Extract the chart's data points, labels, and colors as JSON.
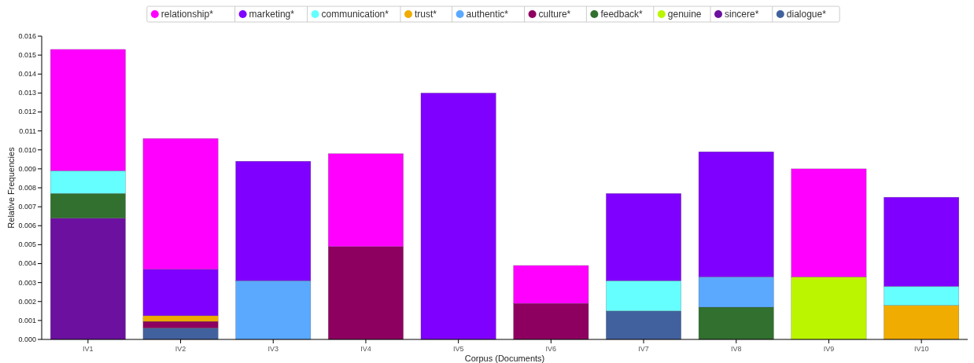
{
  "chart_data": {
    "type": "bar",
    "stacked": true,
    "xlabel": "Corpus (Documents)",
    "ylabel": "Relative Frequencies",
    "legend": "top",
    "grid": false,
    "categories": [
      "IV1",
      "IV2",
      "IV3",
      "IV4",
      "IV5",
      "IV6",
      "IV7",
      "IV8",
      "IV9",
      "IV10"
    ],
    "ylim": [
      0,
      0.016
    ],
    "yticks": [
      {
        "value": 0,
        "label": "0.000"
      },
      {
        "value": 0.001,
        "label": "0.001"
      },
      {
        "value": 0.002,
        "label": "0.002"
      },
      {
        "value": 0.003,
        "label": "0.003"
      },
      {
        "value": 0.004,
        "label": "0.004"
      },
      {
        "value": 0.005,
        "label": "0.005"
      },
      {
        "value": 0.006,
        "label": "0.006"
      },
      {
        "value": 0.007,
        "label": "0.007"
      },
      {
        "value": 0.008,
        "label": "0.008"
      },
      {
        "value": 0.009,
        "label": "0.009"
      },
      {
        "value": 0.01,
        "label": "0.010"
      },
      {
        "value": 0.011,
        "label": "0.011"
      },
      {
        "value": 0.012,
        "label": "0.012"
      },
      {
        "value": 0.013,
        "label": "0.013"
      },
      {
        "value": 0.014,
        "label": "0.014"
      },
      {
        "value": 0.015,
        "label": "0.015"
      },
      {
        "value": 0.016,
        "label": "0.016"
      }
    ],
    "series": [
      {
        "name": "dialogue*",
        "color": "#41619e",
        "values": [
          0,
          0.0006,
          0,
          0,
          0,
          0,
          0.0015,
          0,
          0,
          0
        ]
      },
      {
        "name": "sincere*",
        "color": "#6c10a0",
        "values": [
          0.0064,
          0,
          0,
          0,
          0,
          0,
          0,
          0,
          0,
          0
        ]
      },
      {
        "name": "genuine",
        "color": "#bbf500",
        "values": [
          0,
          0,
          0,
          0,
          0,
          0,
          0,
          0,
          0.0033,
          0
        ]
      },
      {
        "name": "feedback*",
        "color": "#31702e",
        "values": [
          0.0013,
          0,
          0,
          0,
          0,
          0,
          0,
          0.0017,
          0,
          0
        ]
      },
      {
        "name": "culture*",
        "color": "#8e0060",
        "values": [
          0,
          0.00035,
          0,
          0.0049,
          0,
          0.0019,
          0,
          0,
          0,
          0
        ]
      },
      {
        "name": "authentic*",
        "color": "#5aa9ff",
        "values": [
          0,
          0,
          0.0031,
          0,
          0,
          0,
          0,
          0.0016,
          0,
          0
        ]
      },
      {
        "name": "trust*",
        "color": "#f0ac00",
        "values": [
          0,
          0.0003,
          0,
          0,
          0,
          0,
          0,
          0,
          0,
          0.0018
        ]
      },
      {
        "name": "communication*",
        "color": "#66ffff",
        "values": [
          0.0012,
          0,
          0,
          0,
          0,
          0,
          0.0016,
          0,
          0,
          0.001
        ]
      },
      {
        "name": "marketing*",
        "color": "#8000ff",
        "values": [
          0,
          0.00245,
          0.0063,
          0,
          0.013,
          0,
          0.0046,
          0.0066,
          0,
          0.0047
        ]
      },
      {
        "name": "relationship*",
        "color": "#ff00ff",
        "values": [
          0.0064,
          0.0069,
          0,
          0.0049,
          0,
          0.002,
          0,
          0,
          0.0057,
          0
        ]
      }
    ]
  }
}
